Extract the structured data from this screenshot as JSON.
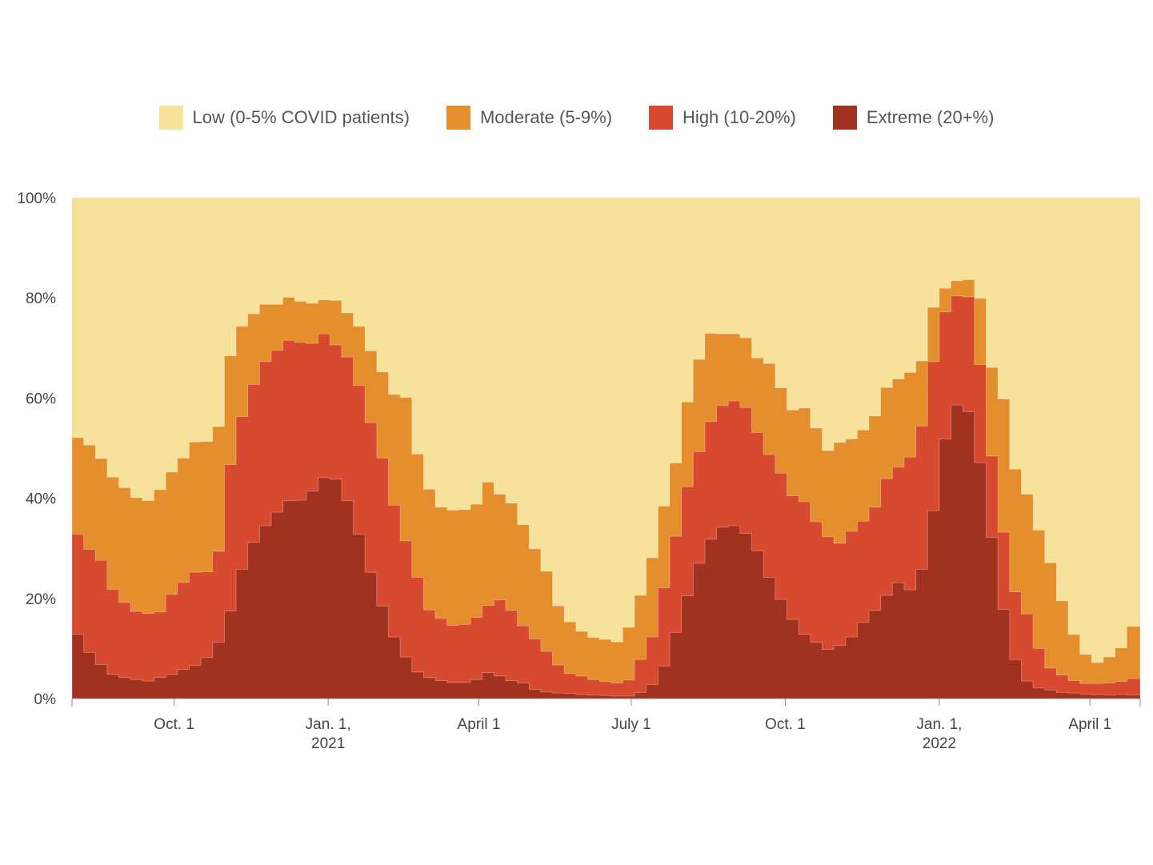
{
  "colors": {
    "low": "#f7e29c",
    "moderate": "#e48e2e",
    "high": "#d84a2f",
    "extreme": "#a23220"
  },
  "chart_data": {
    "type": "area",
    "stacked": true,
    "step": true,
    "title": "",
    "xlabel": "",
    "ylabel": "",
    "ylim": [
      0,
      100
    ],
    "legend_position": "top-center",
    "legend": [
      {
        "key": "low",
        "label": "Low (0-5% COVID patients)"
      },
      {
        "key": "moderate",
        "label": "Moderate (5-9%)"
      },
      {
        "key": "high",
        "label": "High (10-20%)"
      },
      {
        "key": "extreme",
        "label": "Extreme (20+%)"
      }
    ],
    "y_ticks": [
      {
        "value": 0,
        "label": "0%"
      },
      {
        "value": 20,
        "label": "20%"
      },
      {
        "value": 40,
        "label": "40%"
      },
      {
        "value": 60,
        "label": "60%"
      },
      {
        "value": 80,
        "label": "80%"
      },
      {
        "value": 100,
        "label": "100%"
      }
    ],
    "x_ticks": [
      {
        "date": "2020-10-01",
        "lines": [
          "Oct. 1"
        ]
      },
      {
        "date": "2021-01-01",
        "lines": [
          "Jan. 1,",
          "2021"
        ]
      },
      {
        "date": "2021-04-01",
        "lines": [
          "April 1"
        ]
      },
      {
        "date": "2021-07-01",
        "lines": [
          "July 1"
        ]
      },
      {
        "date": "2021-10-01",
        "lines": [
          "Oct. 1"
        ]
      },
      {
        "date": "2022-01-01",
        "lines": [
          "Jan. 1,",
          "2022"
        ]
      },
      {
        "date": "2022-04-01",
        "lines": [
          "April 1"
        ]
      }
    ],
    "x_start": "2020-08-01",
    "x_end": "2022-05-01",
    "weeks": [
      "2020-08-01",
      "2020-08-08",
      "2020-08-15",
      "2020-08-22",
      "2020-08-29",
      "2020-09-05",
      "2020-09-12",
      "2020-09-19",
      "2020-09-26",
      "2020-10-03",
      "2020-10-10",
      "2020-10-17",
      "2020-10-24",
      "2020-10-31",
      "2020-11-07",
      "2020-11-14",
      "2020-11-21",
      "2020-11-28",
      "2020-12-05",
      "2020-12-12",
      "2020-12-19",
      "2020-12-26",
      "2021-01-02",
      "2021-01-09",
      "2021-01-16",
      "2021-01-23",
      "2021-01-30",
      "2021-02-06",
      "2021-02-13",
      "2021-02-20",
      "2021-02-27",
      "2021-03-06",
      "2021-03-13",
      "2021-03-20",
      "2021-03-27",
      "2021-04-03",
      "2021-04-10",
      "2021-04-17",
      "2021-04-24",
      "2021-05-01",
      "2021-05-08",
      "2021-05-15",
      "2021-05-22",
      "2021-05-29",
      "2021-06-05",
      "2021-06-12",
      "2021-06-19",
      "2021-06-26",
      "2021-07-03",
      "2021-07-10",
      "2021-07-17",
      "2021-07-24",
      "2021-07-31",
      "2021-08-07",
      "2021-08-14",
      "2021-08-21",
      "2021-08-28",
      "2021-09-04",
      "2021-09-11",
      "2021-09-18",
      "2021-09-25",
      "2021-10-02",
      "2021-10-09",
      "2021-10-16",
      "2021-10-23",
      "2021-10-30",
      "2021-11-06",
      "2021-11-13",
      "2021-11-20",
      "2021-11-27",
      "2021-12-04",
      "2021-12-11",
      "2021-12-18",
      "2021-12-25",
      "2022-01-01",
      "2022-01-08",
      "2022-01-15",
      "2022-01-22",
      "2022-01-29",
      "2022-02-05",
      "2022-02-12",
      "2022-02-19",
      "2022-02-26",
      "2022-03-05",
      "2022-03-12",
      "2022-03-19",
      "2022-03-26",
      "2022-04-02",
      "2022-04-09",
      "2022-04-16",
      "2022-04-23"
    ],
    "series": [
      {
        "name": "Extreme (20+%)",
        "key": "extreme",
        "values": [
          12.8,
          9.2,
          6.8,
          4.8,
          4.2,
          3.8,
          3.5,
          4.2,
          4.8,
          5.8,
          6.6,
          8.2,
          11.2,
          17.5,
          25.8,
          31.2,
          34.5,
          37.2,
          39.5,
          39.6,
          41.4,
          44.1,
          43.8,
          39.5,
          32.8,
          25.2,
          18.5,
          12.3,
          8.3,
          5.3,
          4.2,
          3.6,
          3.2,
          3.2,
          3.8,
          5.2,
          4.5,
          3.6,
          3.1,
          1.8,
          1.3,
          1.1,
          1.0,
          0.8,
          0.7,
          0.6,
          0.5,
          0.5,
          1.2,
          2.8,
          6.5,
          13.2,
          20.5,
          27.0,
          31.8,
          34.2,
          34.5,
          33.0,
          29.5,
          24.2,
          19.8,
          15.8,
          12.8,
          11.2,
          9.8,
          10.6,
          12.3,
          15.2,
          17.6,
          20.6,
          23.1,
          21.7,
          25.8,
          37.5,
          51.8,
          58.6,
          57.3,
          47.1,
          32.2,
          17.8,
          7.8,
          3.5,
          2.1,
          1.7,
          1.2,
          1.1,
          0.9,
          0.8,
          0.7,
          0.8,
          0.7
        ]
      },
      {
        "name": "High (10-20%)",
        "key": "high",
        "values": [
          20.0,
          20.6,
          20.8,
          17.0,
          15.0,
          13.6,
          13.5,
          13.1,
          16.0,
          17.4,
          18.6,
          17.1,
          18.2,
          29.2,
          30.5,
          31.5,
          32.8,
          32.3,
          32.0,
          31.5,
          29.5,
          28.7,
          26.8,
          28.7,
          29.7,
          29.9,
          29.5,
          26.3,
          23.2,
          18.9,
          13.5,
          12.4,
          11.4,
          11.6,
          12.4,
          13.4,
          15.2,
          14.0,
          11.4,
          10.1,
          8.1,
          5.6,
          4.0,
          3.7,
          3.1,
          2.8,
          2.6,
          3.2,
          6.6,
          9.5,
          15.6,
          19.2,
          21.8,
          22.3,
          23.5,
          24.3,
          24.9,
          25.1,
          23.6,
          24.5,
          25.2,
          24.7,
          26.5,
          24.1,
          22.5,
          20.4,
          21.1,
          20.2,
          20.6,
          23.3,
          23.1,
          26.5,
          28.6,
          29.8,
          25.4,
          21.8,
          22.9,
          19.6,
          16.2,
          15.4,
          13.5,
          13.4,
          7.9,
          4.4,
          3.5,
          2.5,
          2.1,
          2.2,
          2.4,
          2.6,
          3.3
        ]
      },
      {
        "name": "Moderate (5-9%)",
        "key": "moderate",
        "values": [
          19.3,
          20.8,
          20.3,
          22.4,
          22.9,
          22.7,
          22.5,
          24.4,
          24.4,
          24.8,
          26.0,
          26.0,
          24.9,
          21.7,
          18.0,
          14.1,
          11.4,
          9.2,
          8.6,
          8.2,
          8.0,
          6.8,
          8.9,
          8.8,
          11.8,
          14.3,
          17.2,
          22.1,
          28.6,
          24.6,
          24.1,
          22.2,
          23.0,
          22.9,
          22.6,
          24.6,
          21.1,
          21.4,
          20.2,
          18.0,
          16.0,
          11.8,
          10.3,
          8.9,
          8.4,
          8.4,
          8.2,
          10.5,
          12.8,
          15.8,
          16.3,
          14.6,
          16.9,
          18.4,
          17.6,
          14.3,
          13.4,
          13.9,
          14.9,
          18.2,
          17.0,
          17.1,
          18.7,
          18.7,
          17.2,
          20.1,
          18.4,
          18.2,
          18.2,
          18.2,
          17.6,
          16.9,
          13.0,
          10.8,
          4.7,
          3.0,
          3.4,
          13.2,
          17.7,
          26.6,
          24.5,
          23.9,
          23.6,
          21.0,
          14.8,
          9.2,
          5.8,
          4.2,
          5.2,
          6.7,
          10.4
        ]
      }
    ]
  }
}
